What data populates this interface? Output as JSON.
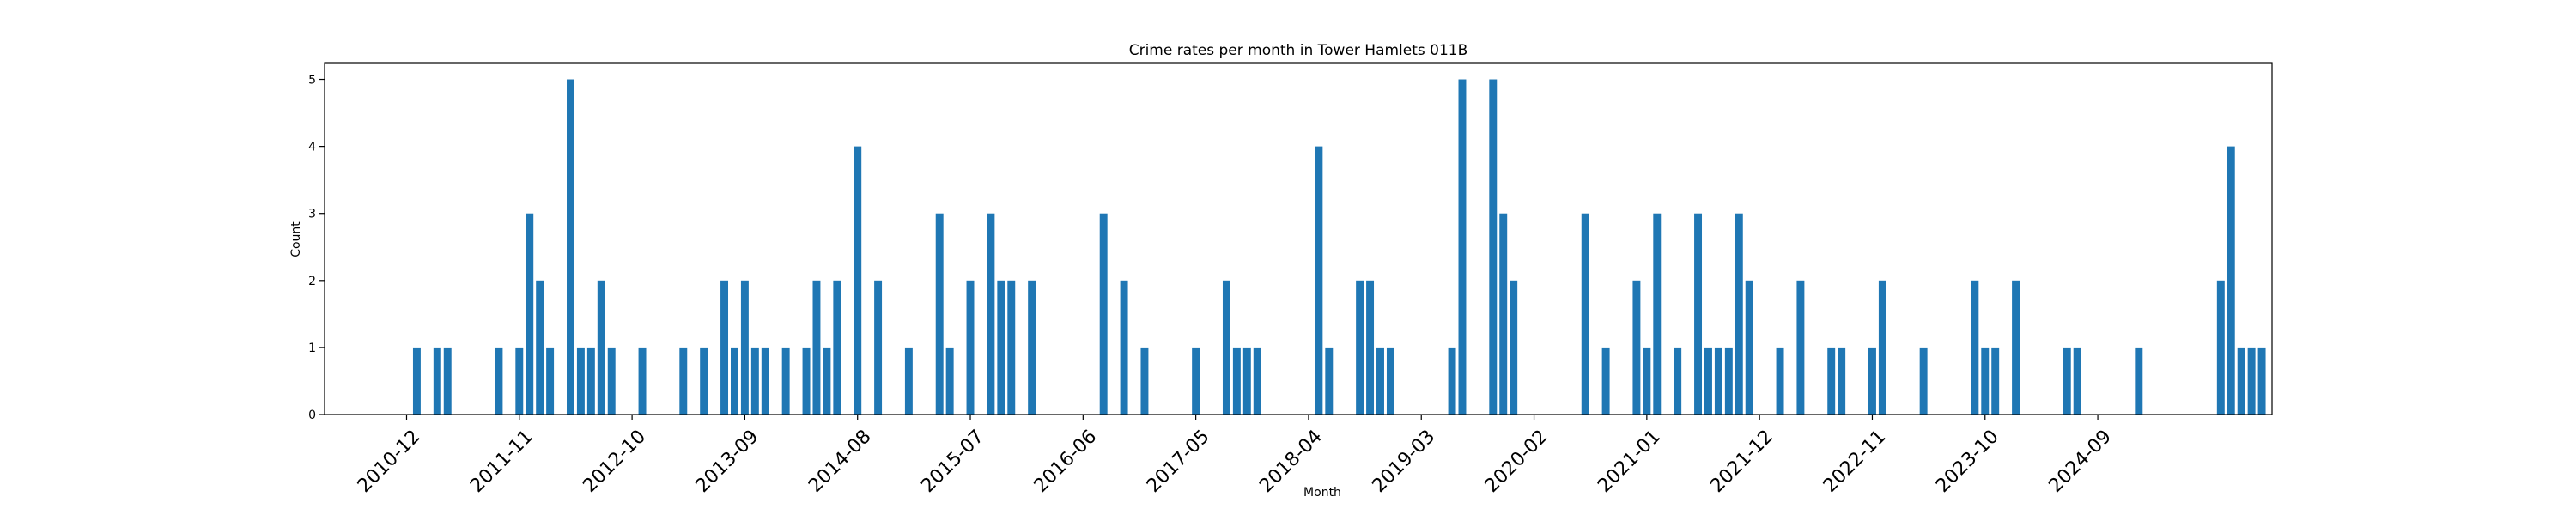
{
  "chart_data": {
    "type": "bar",
    "title": "Crime rates per month in Tower Hamlets 011B",
    "xlabel": "Month",
    "ylabel": "Count",
    "color": "#1f77b4",
    "ylim": [
      0,
      5.25
    ],
    "yticks": [
      0,
      1,
      2,
      3,
      4,
      5
    ],
    "xlim": [
      "2010-04",
      "2026-02"
    ],
    "xticks": [
      "2010-12",
      "2011-11",
      "2012-10",
      "2013-09",
      "2014-08",
      "2015-07",
      "2016-06",
      "2017-05",
      "2018-04",
      "2019-03",
      "2020-02",
      "2021-01",
      "2021-12",
      "2022-11",
      "2023-10",
      "2024-09"
    ],
    "grid": false,
    "legend": "none",
    "points": [
      [
        "2011-01",
        1
      ],
      [
        "2011-03",
        1
      ],
      [
        "2011-04",
        1
      ],
      [
        "2011-09",
        1
      ],
      [
        "2011-11",
        1
      ],
      [
        "2011-12",
        3
      ],
      [
        "2012-01",
        2
      ],
      [
        "2012-02",
        1
      ],
      [
        "2012-04",
        5
      ],
      [
        "2012-05",
        1
      ],
      [
        "2012-06",
        1
      ],
      [
        "2012-07",
        2
      ],
      [
        "2012-08",
        1
      ],
      [
        "2012-11",
        1
      ],
      [
        "2013-03",
        1
      ],
      [
        "2013-05",
        1
      ],
      [
        "2013-07",
        2
      ],
      [
        "2013-08",
        1
      ],
      [
        "2013-09",
        2
      ],
      [
        "2013-10",
        1
      ],
      [
        "2013-11",
        1
      ],
      [
        "2014-01",
        1
      ],
      [
        "2014-03",
        1
      ],
      [
        "2014-04",
        2
      ],
      [
        "2014-05",
        1
      ],
      [
        "2014-06",
        2
      ],
      [
        "2014-08",
        4
      ],
      [
        "2014-10",
        2
      ],
      [
        "2015-01",
        1
      ],
      [
        "2015-04",
        3
      ],
      [
        "2015-05",
        1
      ],
      [
        "2015-07",
        2
      ],
      [
        "2015-09",
        3
      ],
      [
        "2015-10",
        2
      ],
      [
        "2015-11",
        2
      ],
      [
        "2016-01",
        2
      ],
      [
        "2016-08",
        3
      ],
      [
        "2016-10",
        2
      ],
      [
        "2016-12",
        1
      ],
      [
        "2017-05",
        1
      ],
      [
        "2017-08",
        2
      ],
      [
        "2017-09",
        1
      ],
      [
        "2017-10",
        1
      ],
      [
        "2017-11",
        1
      ],
      [
        "2018-05",
        4
      ],
      [
        "2018-06",
        1
      ],
      [
        "2018-09",
        2
      ],
      [
        "2018-10",
        2
      ],
      [
        "2018-11",
        1
      ],
      [
        "2018-12",
        1
      ],
      [
        "2019-06",
        1
      ],
      [
        "2019-07",
        5
      ],
      [
        "2019-10",
        5
      ],
      [
        "2019-11",
        3
      ],
      [
        "2019-12",
        2
      ],
      [
        "2020-07",
        3
      ],
      [
        "2020-09",
        1
      ],
      [
        "2020-12",
        2
      ],
      [
        "2021-01",
        1
      ],
      [
        "2021-02",
        3
      ],
      [
        "2021-04",
        1
      ],
      [
        "2021-06",
        3
      ],
      [
        "2021-07",
        1
      ],
      [
        "2021-08",
        1
      ],
      [
        "2021-09",
        1
      ],
      [
        "2021-10",
        3
      ],
      [
        "2021-11",
        2
      ],
      [
        "2022-02",
        1
      ],
      [
        "2022-04",
        2
      ],
      [
        "2022-07",
        1
      ],
      [
        "2022-08",
        1
      ],
      [
        "2022-11",
        1
      ],
      [
        "2022-12",
        2
      ],
      [
        "2023-04",
        1
      ],
      [
        "2023-09",
        2
      ],
      [
        "2023-10",
        1
      ],
      [
        "2023-11",
        1
      ],
      [
        "2024-01",
        2
      ],
      [
        "2024-06",
        1
      ],
      [
        "2024-07",
        1
      ],
      [
        "2025-01",
        1
      ],
      [
        "2025-09",
        2
      ],
      [
        "2025-10",
        4
      ],
      [
        "2025-11",
        1
      ],
      [
        "2025-12",
        1
      ],
      [
        "2026-01",
        1
      ]
    ]
  }
}
